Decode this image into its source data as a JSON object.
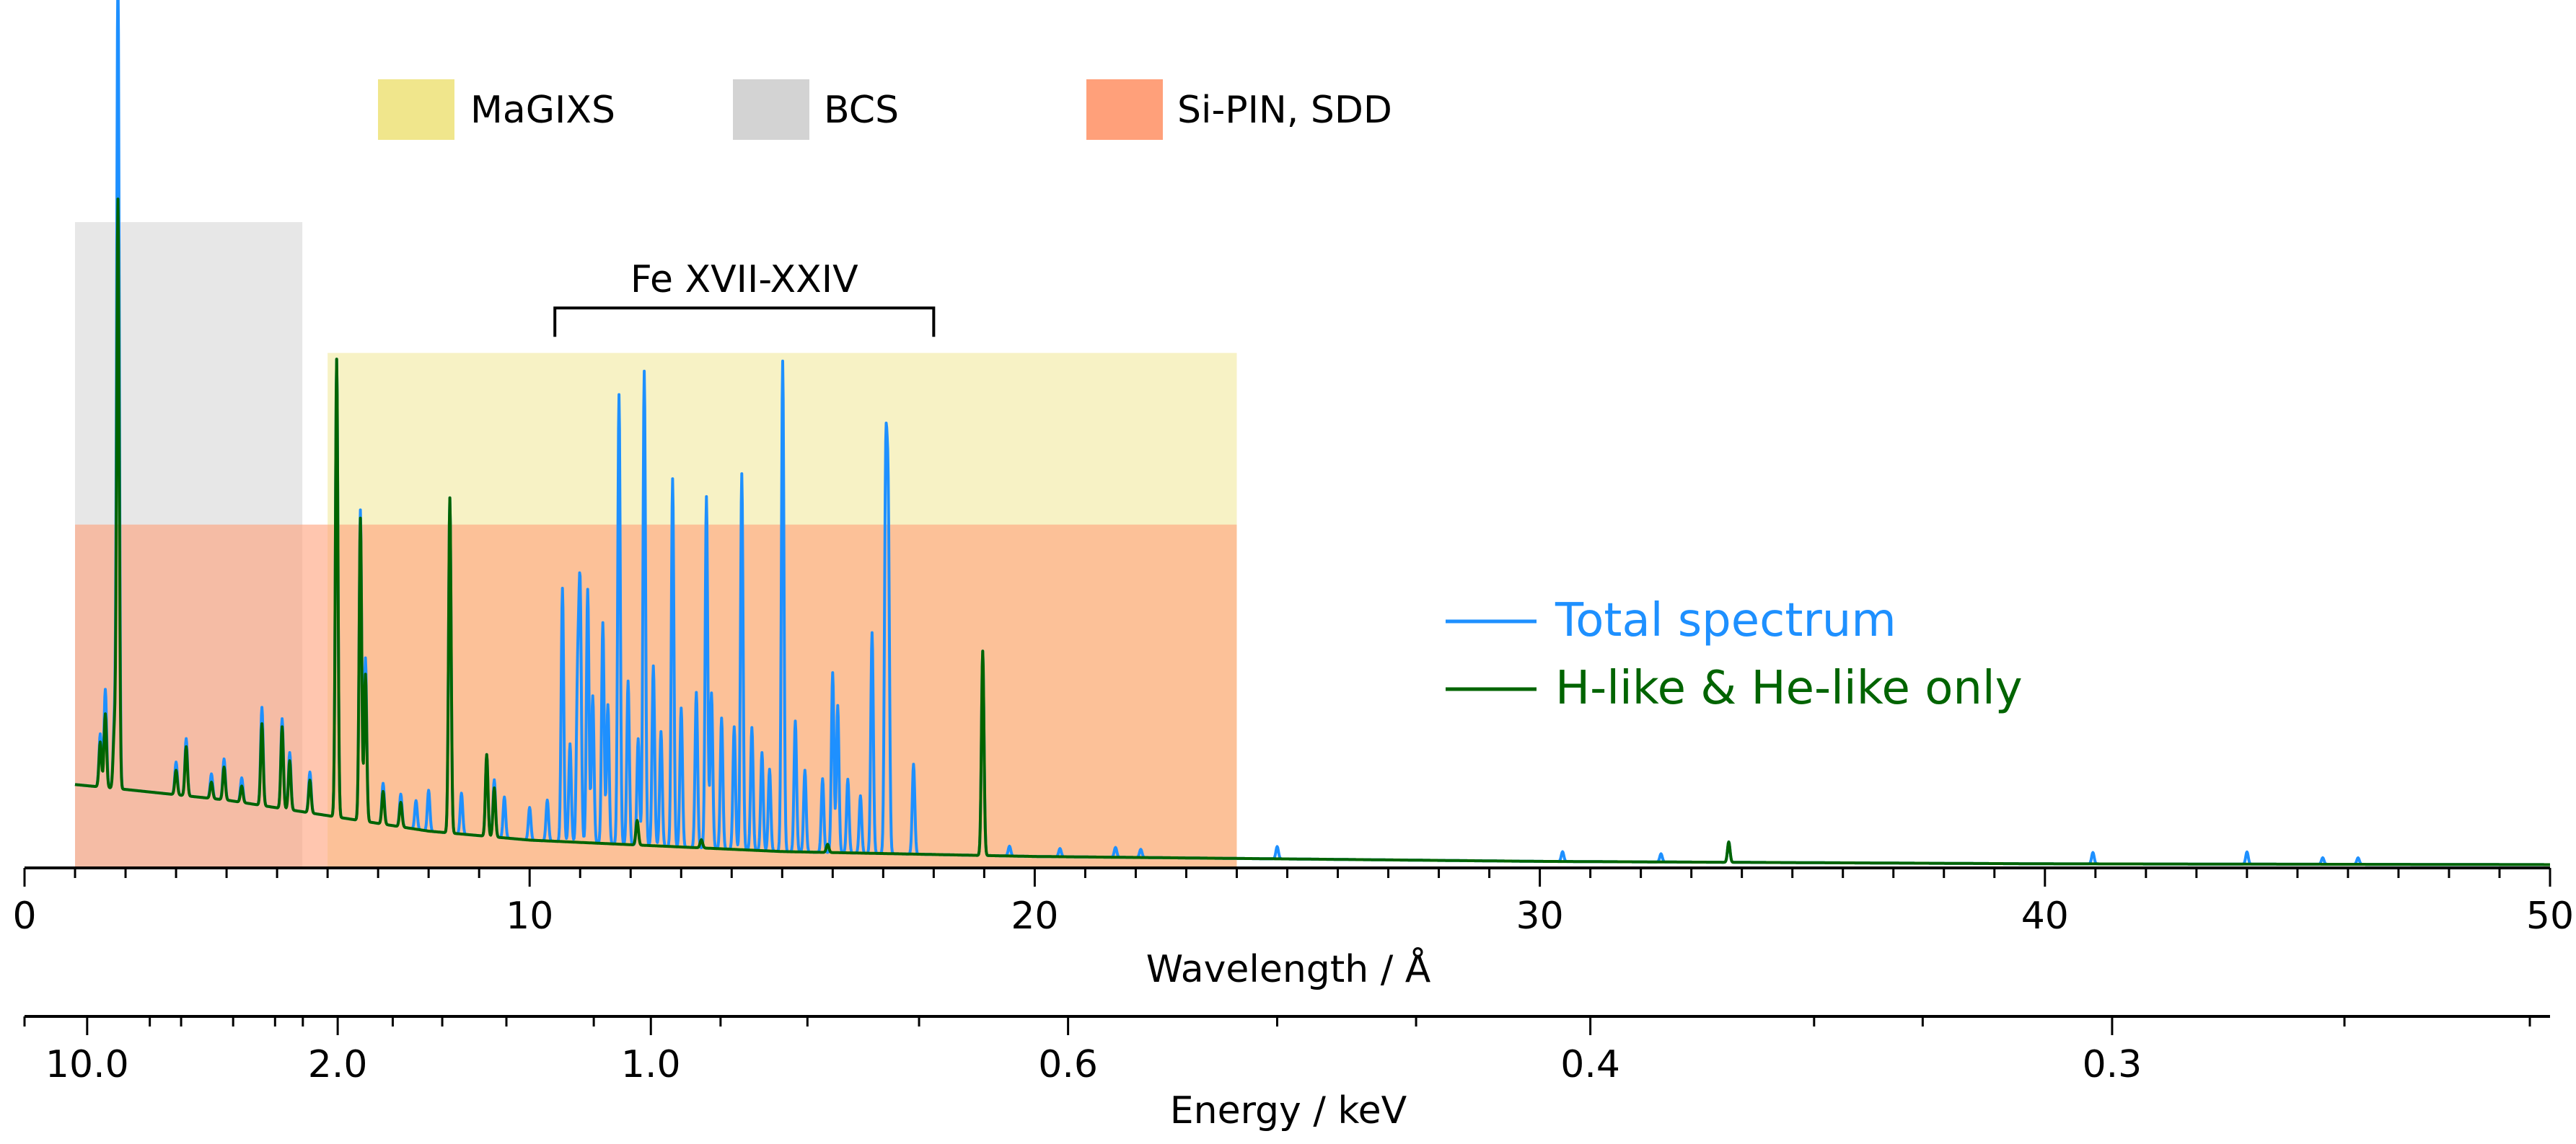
{
  "chart_data": {
    "type": "line",
    "xlabel": "Wavelength / Å",
    "secondary_xlabel": "Energy / keV",
    "xlim": [
      0,
      50
    ],
    "ylim": [
      0,
      1.0
    ],
    "x_ticks": [
      0,
      10,
      20,
      30,
      40,
      50
    ],
    "x_tick_labels": [
      "0",
      "10",
      "20",
      "30",
      "40",
      "50"
    ],
    "energy_ticks": [
      {
        "label": "10.0",
        "wavelength": 1.24
      },
      {
        "label": "2.0",
        "wavelength": 6.2
      },
      {
        "label": "1.0",
        "wavelength": 12.4
      },
      {
        "label": "0.6",
        "wavelength": 20.66
      },
      {
        "label": "0.4",
        "wavelength": 31.0
      },
      {
        "label": "0.3",
        "wavelength": 41.33
      }
    ],
    "energy_minor_ticks": [
      0.0,
      2.48,
      3.1,
      4.13,
      4.96,
      5.51,
      7.29,
      8.27,
      9.54,
      11.27,
      13.78,
      15.5,
      17.71,
      24.8,
      27.55,
      35.43,
      37.58,
      45.93,
      49.6
    ],
    "bands": [
      {
        "name": "MaGIXS",
        "x0": 6.0,
        "x1": 24.0,
        "y0": 0.0,
        "y1": 0.63,
        "color": "#f0e68c",
        "opacity": 0.5
      },
      {
        "name": "BCS",
        "x0": 1.0,
        "x1": 5.5,
        "y0": 0.0,
        "y1": 0.79,
        "color": "#d3d3d3",
        "opacity": 0.55
      },
      {
        "name": "Si-PIN, SDD",
        "x0": 1.0,
        "x1": 24.0,
        "y0": 0.0,
        "y1": 0.42,
        "color": "#ffa07a",
        "opacity": 0.6
      }
    ],
    "band_legend": [
      {
        "label": "MaGIXS",
        "color": "#f0e68c"
      },
      {
        "label": "BCS",
        "color": "#d3d3d3"
      },
      {
        "label": "Si-PIN, SDD",
        "color": "#ffa07a"
      }
    ],
    "annotation": {
      "text": "Fe XVII-XXIV",
      "x0": 10.5,
      "x1": 18.0,
      "y": 0.685
    },
    "legend": {
      "position": "center-right"
    },
    "series": [
      {
        "name": "Total spectrum",
        "color": "#1e90ff",
        "continuum": [
          [
            1.0,
            0.102
          ],
          [
            2.0,
            0.096
          ],
          [
            4.0,
            0.083
          ],
          [
            6.0,
            0.064
          ],
          [
            8.0,
            0.045
          ],
          [
            10.0,
            0.034
          ],
          [
            15.0,
            0.02
          ],
          [
            20.0,
            0.014
          ],
          [
            30.0,
            0.008
          ],
          [
            40.0,
            0.005
          ],
          [
            50.0,
            0.004
          ]
        ],
        "lines": [
          [
            1.5,
            0.065
          ],
          [
            1.6,
            0.12
          ],
          [
            1.78,
            0.08
          ],
          [
            1.85,
            1.0
          ],
          [
            3.0,
            0.04
          ],
          [
            3.2,
            0.07
          ],
          [
            3.7,
            0.03
          ],
          [
            3.95,
            0.05
          ],
          [
            4.3,
            0.03
          ],
          [
            4.7,
            0.12
          ],
          [
            5.1,
            0.11
          ],
          [
            5.25,
            0.07
          ],
          [
            5.65,
            0.05
          ],
          [
            6.18,
            0.56
          ],
          [
            6.65,
            0.38
          ],
          [
            6.75,
            0.2
          ],
          [
            7.1,
            0.05
          ],
          [
            7.45,
            0.04
          ],
          [
            7.75,
            0.035
          ],
          [
            8.0,
            0.05
          ],
          [
            8.42,
            0.41
          ],
          [
            8.65,
            0.05
          ],
          [
            9.15,
            0.1
          ],
          [
            9.3,
            0.07
          ],
          [
            9.5,
            0.05
          ],
          [
            10.0,
            0.04
          ],
          [
            10.35,
            0.05
          ],
          [
            10.65,
            0.31
          ],
          [
            10.8,
            0.12
          ],
          [
            10.95,
            0.19
          ],
          [
            11.0,
            0.3
          ],
          [
            11.15,
            0.31
          ],
          [
            11.25,
            0.18
          ],
          [
            11.45,
            0.27
          ],
          [
            11.55,
            0.17
          ],
          [
            11.77,
            0.55
          ],
          [
            11.95,
            0.2
          ],
          [
            12.15,
            0.13
          ],
          [
            12.27,
            0.58
          ],
          [
            12.45,
            0.22
          ],
          [
            12.6,
            0.14
          ],
          [
            12.83,
            0.45
          ],
          [
            13.0,
            0.17
          ],
          [
            13.3,
            0.19
          ],
          [
            13.5,
            0.43
          ],
          [
            13.6,
            0.19
          ],
          [
            13.8,
            0.16
          ],
          [
            14.05,
            0.15
          ],
          [
            14.2,
            0.46
          ],
          [
            14.4,
            0.15
          ],
          [
            14.6,
            0.12
          ],
          [
            14.75,
            0.1
          ],
          [
            15.01,
            0.6
          ],
          [
            15.26,
            0.16
          ],
          [
            15.45,
            0.1
          ],
          [
            15.8,
            0.09
          ],
          [
            16.0,
            0.22
          ],
          [
            16.1,
            0.18
          ],
          [
            16.3,
            0.09
          ],
          [
            16.55,
            0.07
          ],
          [
            16.78,
            0.27
          ],
          [
            17.05,
            0.45
          ],
          [
            17.1,
            0.4
          ],
          [
            17.6,
            0.11
          ],
          [
            18.97,
            0.25
          ],
          [
            19.5,
            0.012
          ],
          [
            20.5,
            0.01
          ],
          [
            21.6,
            0.012
          ],
          [
            22.1,
            0.01
          ],
          [
            24.8,
            0.015
          ],
          [
            30.45,
            0.012
          ],
          [
            32.4,
            0.01
          ],
          [
            33.74,
            0.025
          ],
          [
            40.95,
            0.014
          ],
          [
            44.0,
            0.015
          ],
          [
            45.5,
            0.008
          ],
          [
            46.2,
            0.008
          ]
        ]
      },
      {
        "name": "H-like & He-like only",
        "color": "#006400",
        "continuum": [
          [
            1.0,
            0.102
          ],
          [
            2.0,
            0.096
          ],
          [
            4.0,
            0.083
          ],
          [
            6.0,
            0.064
          ],
          [
            8.0,
            0.045
          ],
          [
            10.0,
            0.034
          ],
          [
            15.0,
            0.02
          ],
          [
            20.0,
            0.014
          ],
          [
            30.0,
            0.008
          ],
          [
            40.0,
            0.005
          ],
          [
            50.0,
            0.004
          ]
        ],
        "lines": [
          [
            1.5,
            0.055
          ],
          [
            1.6,
            0.09
          ],
          [
            1.78,
            0.07
          ],
          [
            1.85,
            0.72
          ],
          [
            3.0,
            0.03
          ],
          [
            3.2,
            0.06
          ],
          [
            3.7,
            0.02
          ],
          [
            3.95,
            0.04
          ],
          [
            4.3,
            0.02
          ],
          [
            4.7,
            0.1
          ],
          [
            5.1,
            0.1
          ],
          [
            5.25,
            0.06
          ],
          [
            5.65,
            0.04
          ],
          [
            6.18,
            0.56
          ],
          [
            6.65,
            0.37
          ],
          [
            6.75,
            0.18
          ],
          [
            7.1,
            0.04
          ],
          [
            7.45,
            0.03
          ],
          [
            8.42,
            0.41
          ],
          [
            9.15,
            0.1
          ],
          [
            9.3,
            0.06
          ],
          [
            12.13,
            0.03
          ],
          [
            13.4,
            0.01
          ],
          [
            15.9,
            0.01
          ],
          [
            18.97,
            0.25
          ],
          [
            33.74,
            0.025
          ]
        ]
      }
    ]
  }
}
